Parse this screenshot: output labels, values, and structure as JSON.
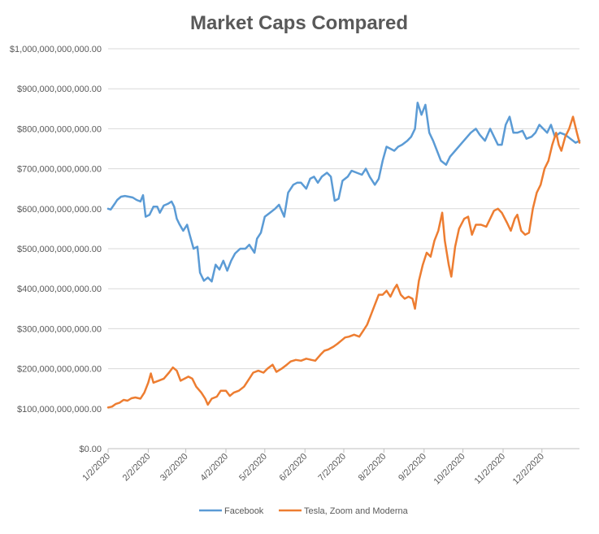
{
  "chart_data": {
    "type": "line",
    "title": "Market Caps Compared",
    "xlabel": "",
    "ylabel": "",
    "ylim": [
      0,
      1000000000000
    ],
    "yticks": [
      {
        "value": 0,
        "label": "$0.00"
      },
      {
        "value": 100000000000,
        "label": "$100,000,000,000.00"
      },
      {
        "value": 200000000000,
        "label": "$200,000,000,000.00"
      },
      {
        "value": 300000000000,
        "label": "$300,000,000,000.00"
      },
      {
        "value": 400000000000,
        "label": "$400,000,000,000.00"
      },
      {
        "value": 500000000000,
        "label": "$500,000,000,000.00"
      },
      {
        "value": 600000000000,
        "label": "$600,000,000,000.00"
      },
      {
        "value": 700000000000,
        "label": "$700,000,000,000.00"
      },
      {
        "value": 800000000000,
        "label": "$800,000,000,000.00"
      },
      {
        "value": 900000000000,
        "label": "$900,000,000,000.00"
      },
      {
        "value": 1000000000000,
        "label": "$1,000,000,000,000.00"
      }
    ],
    "xlim": [
      "2020-01-02",
      "2020-12-31"
    ],
    "xticks": [
      {
        "date": "2020-01-02",
        "label": "1/2/2020"
      },
      {
        "date": "2020-02-02",
        "label": "2/2/2020"
      },
      {
        "date": "2020-03-02",
        "label": "3/2/2020"
      },
      {
        "date": "2020-04-02",
        "label": "4/2/2020"
      },
      {
        "date": "2020-05-02",
        "label": "5/2/2020"
      },
      {
        "date": "2020-06-02",
        "label": "6/2/2020"
      },
      {
        "date": "2020-07-02",
        "label": "7/2/2020"
      },
      {
        "date": "2020-08-02",
        "label": "8/2/2020"
      },
      {
        "date": "2020-09-02",
        "label": "9/2/2020"
      },
      {
        "date": "2020-10-02",
        "label": "10/2/2020"
      },
      {
        "date": "2020-11-02",
        "label": "11/2/2020"
      },
      {
        "date": "2020-12-02",
        "label": "12/2/2020"
      }
    ],
    "grid": true,
    "legend_position": "bottom",
    "series": [
      {
        "name": "Facebook",
        "color": "#5b9bd5",
        "points": [
          [
            "2020-01-02",
            600
          ],
          [
            "2020-01-04",
            598
          ],
          [
            "2020-01-07",
            612
          ],
          [
            "2020-01-09",
            622
          ],
          [
            "2020-01-12",
            630
          ],
          [
            "2020-01-15",
            632
          ],
          [
            "2020-01-18",
            630
          ],
          [
            "2020-01-21",
            628
          ],
          [
            "2020-01-24",
            622
          ],
          [
            "2020-01-27",
            618
          ],
          [
            "2020-01-29",
            634
          ],
          [
            "2020-01-31",
            580
          ],
          [
            "2020-02-03",
            585
          ],
          [
            "2020-02-06",
            605
          ],
          [
            "2020-02-09",
            605
          ],
          [
            "2020-02-11",
            590
          ],
          [
            "2020-02-14",
            608
          ],
          [
            "2020-02-17",
            612
          ],
          [
            "2020-02-20",
            618
          ],
          [
            "2020-02-22",
            605
          ],
          [
            "2020-02-24",
            575
          ],
          [
            "2020-02-26",
            562
          ],
          [
            "2020-02-29",
            545
          ],
          [
            "2020-03-03",
            560
          ],
          [
            "2020-03-05",
            535
          ],
          [
            "2020-03-08",
            500
          ],
          [
            "2020-03-11",
            505
          ],
          [
            "2020-03-13",
            440
          ],
          [
            "2020-03-16",
            420
          ],
          [
            "2020-03-19",
            428
          ],
          [
            "2020-03-22",
            418
          ],
          [
            "2020-03-25",
            460
          ],
          [
            "2020-03-28",
            448
          ],
          [
            "2020-03-31",
            470
          ],
          [
            "2020-04-03",
            445
          ],
          [
            "2020-04-06",
            470
          ],
          [
            "2020-04-09",
            488
          ],
          [
            "2020-04-13",
            500
          ],
          [
            "2020-04-17",
            500
          ],
          [
            "2020-04-20",
            510
          ],
          [
            "2020-04-24",
            490
          ],
          [
            "2020-04-26",
            525
          ],
          [
            "2020-04-29",
            540
          ],
          [
            "2020-05-02",
            580
          ],
          [
            "2020-05-06",
            590
          ],
          [
            "2020-05-10",
            600
          ],
          [
            "2020-05-13",
            610
          ],
          [
            "2020-05-17",
            580
          ],
          [
            "2020-05-20",
            640
          ],
          [
            "2020-05-24",
            660
          ],
          [
            "2020-05-27",
            665
          ],
          [
            "2020-05-30",
            665
          ],
          [
            "2020-06-03",
            650
          ],
          [
            "2020-06-06",
            675
          ],
          [
            "2020-06-09",
            680
          ],
          [
            "2020-06-12",
            665
          ],
          [
            "2020-06-15",
            680
          ],
          [
            "2020-06-19",
            690
          ],
          [
            "2020-06-22",
            680
          ],
          [
            "2020-06-25",
            620
          ],
          [
            "2020-06-28",
            625
          ],
          [
            "2020-07-01",
            670
          ],
          [
            "2020-07-05",
            680
          ],
          [
            "2020-07-08",
            695
          ],
          [
            "2020-07-12",
            690
          ],
          [
            "2020-07-16",
            685
          ],
          [
            "2020-07-19",
            700
          ],
          [
            "2020-07-22",
            680
          ],
          [
            "2020-07-26",
            660
          ],
          [
            "2020-07-29",
            675
          ],
          [
            "2020-08-01",
            720
          ],
          [
            "2020-08-04",
            755
          ],
          [
            "2020-08-07",
            750
          ],
          [
            "2020-08-10",
            745
          ],
          [
            "2020-08-13",
            755
          ],
          [
            "2020-08-16",
            760
          ],
          [
            "2020-08-20",
            770
          ],
          [
            "2020-08-23",
            780
          ],
          [
            "2020-08-26",
            800
          ],
          [
            "2020-08-28",
            865
          ],
          [
            "2020-08-31",
            835
          ],
          [
            "2020-09-03",
            860
          ],
          [
            "2020-09-06",
            790
          ],
          [
            "2020-09-09",
            770
          ],
          [
            "2020-09-12",
            745
          ],
          [
            "2020-09-15",
            720
          ],
          [
            "2020-09-19",
            710
          ],
          [
            "2020-09-22",
            730
          ],
          [
            "2020-09-26",
            745
          ],
          [
            "2020-09-30",
            760
          ],
          [
            "2020-10-04",
            775
          ],
          [
            "2020-10-08",
            790
          ],
          [
            "2020-10-12",
            800
          ],
          [
            "2020-10-15",
            785
          ],
          [
            "2020-10-19",
            770
          ],
          [
            "2020-10-23",
            800
          ],
          [
            "2020-10-26",
            780
          ],
          [
            "2020-10-29",
            760
          ],
          [
            "2020-11-01",
            760
          ],
          [
            "2020-11-04",
            810
          ],
          [
            "2020-11-07",
            830
          ],
          [
            "2020-11-10",
            790
          ],
          [
            "2020-11-13",
            790
          ],
          [
            "2020-11-17",
            795
          ],
          [
            "2020-11-20",
            775
          ],
          [
            "2020-11-24",
            780
          ],
          [
            "2020-11-27",
            790
          ],
          [
            "2020-11-30",
            810
          ],
          [
            "2020-12-03",
            800
          ],
          [
            "2020-12-06",
            790
          ],
          [
            "2020-12-09",
            810
          ],
          [
            "2020-12-12",
            780
          ],
          [
            "2020-12-16",
            790
          ],
          [
            "2020-12-20",
            785
          ],
          [
            "2020-12-24",
            775
          ],
          [
            "2020-12-28",
            765
          ],
          [
            "2020-12-31",
            770
          ]
        ]
      },
      {
        "name": "Tesla, Zoom and Moderna",
        "color": "#ed7d31",
        "points": [
          [
            "2020-01-02",
            103
          ],
          [
            "2020-01-05",
            105
          ],
          [
            "2020-01-08",
            112
          ],
          [
            "2020-01-11",
            115
          ],
          [
            "2020-01-14",
            122
          ],
          [
            "2020-01-17",
            120
          ],
          [
            "2020-01-20",
            126
          ],
          [
            "2020-01-23",
            128
          ],
          [
            "2020-01-27",
            125
          ],
          [
            "2020-01-30",
            140
          ],
          [
            "2020-02-02",
            165
          ],
          [
            "2020-02-04",
            188
          ],
          [
            "2020-02-06",
            165
          ],
          [
            "2020-02-10",
            170
          ],
          [
            "2020-02-14",
            175
          ],
          [
            "2020-02-18",
            190
          ],
          [
            "2020-02-21",
            203
          ],
          [
            "2020-02-24",
            195
          ],
          [
            "2020-02-27",
            170
          ],
          [
            "2020-03-01",
            175
          ],
          [
            "2020-03-04",
            180
          ],
          [
            "2020-03-07",
            175
          ],
          [
            "2020-03-10",
            155
          ],
          [
            "2020-03-14",
            140
          ],
          [
            "2020-03-17",
            125
          ],
          [
            "2020-03-19",
            110
          ],
          [
            "2020-03-22",
            125
          ],
          [
            "2020-03-26",
            130
          ],
          [
            "2020-03-29",
            145
          ],
          [
            "2020-04-02",
            145
          ],
          [
            "2020-04-05",
            132
          ],
          [
            "2020-04-08",
            140
          ],
          [
            "2020-04-12",
            145
          ],
          [
            "2020-04-16",
            155
          ],
          [
            "2020-04-20",
            175
          ],
          [
            "2020-04-23",
            190
          ],
          [
            "2020-04-27",
            195
          ],
          [
            "2020-05-01",
            190
          ],
          [
            "2020-05-04",
            200
          ],
          [
            "2020-05-08",
            210
          ],
          [
            "2020-05-11",
            192
          ],
          [
            "2020-05-15",
            200
          ],
          [
            "2020-05-19",
            210
          ],
          [
            "2020-05-22",
            218
          ],
          [
            "2020-05-26",
            222
          ],
          [
            "2020-05-30",
            220
          ],
          [
            "2020-06-03",
            225
          ],
          [
            "2020-06-07",
            222
          ],
          [
            "2020-06-10",
            220
          ],
          [
            "2020-06-14",
            235
          ],
          [
            "2020-06-17",
            245
          ],
          [
            "2020-06-20",
            248
          ],
          [
            "2020-06-24",
            255
          ],
          [
            "2020-06-27",
            262
          ],
          [
            "2020-06-30",
            270
          ],
          [
            "2020-07-03",
            278
          ],
          [
            "2020-07-06",
            280
          ],
          [
            "2020-07-10",
            285
          ],
          [
            "2020-07-14",
            280
          ],
          [
            "2020-07-17",
            295
          ],
          [
            "2020-07-20",
            310
          ],
          [
            "2020-07-23",
            335
          ],
          [
            "2020-07-26",
            360
          ],
          [
            "2020-07-29",
            385
          ],
          [
            "2020-08-01",
            385
          ],
          [
            "2020-08-04",
            395
          ],
          [
            "2020-08-07",
            380
          ],
          [
            "2020-08-10",
            400
          ],
          [
            "2020-08-12",
            410
          ],
          [
            "2020-08-15",
            385
          ],
          [
            "2020-08-18",
            375
          ],
          [
            "2020-08-21",
            380
          ],
          [
            "2020-08-24",
            375
          ],
          [
            "2020-08-26",
            350
          ],
          [
            "2020-08-29",
            420
          ],
          [
            "2020-09-01",
            460
          ],
          [
            "2020-09-04",
            490
          ],
          [
            "2020-09-07",
            480
          ],
          [
            "2020-09-10",
            520
          ],
          [
            "2020-09-13",
            545
          ],
          [
            "2020-09-16",
            590
          ],
          [
            "2020-09-18",
            520
          ],
          [
            "2020-09-21",
            460
          ],
          [
            "2020-09-23",
            430
          ],
          [
            "2020-09-26",
            505
          ],
          [
            "2020-09-29",
            550
          ],
          [
            "2020-10-03",
            575
          ],
          [
            "2020-10-06",
            580
          ],
          [
            "2020-10-09",
            535
          ],
          [
            "2020-10-12",
            560
          ],
          [
            "2020-10-16",
            560
          ],
          [
            "2020-10-20",
            555
          ],
          [
            "2020-10-23",
            575
          ],
          [
            "2020-10-26",
            595
          ],
          [
            "2020-10-29",
            600
          ],
          [
            "2020-11-01",
            590
          ],
          [
            "2020-11-05",
            565
          ],
          [
            "2020-11-08",
            545
          ],
          [
            "2020-11-11",
            575
          ],
          [
            "2020-11-13",
            585
          ],
          [
            "2020-11-16",
            545
          ],
          [
            "2020-11-19",
            535
          ],
          [
            "2020-11-22",
            540
          ],
          [
            "2020-11-25",
            600
          ],
          [
            "2020-11-28",
            640
          ],
          [
            "2020-12-01",
            660
          ],
          [
            "2020-12-04",
            700
          ],
          [
            "2020-12-07",
            720
          ],
          [
            "2020-12-10",
            760
          ],
          [
            "2020-12-13",
            790
          ],
          [
            "2020-12-15",
            760
          ],
          [
            "2020-12-17",
            745
          ],
          [
            "2020-12-20",
            780
          ],
          [
            "2020-12-23",
            800
          ],
          [
            "2020-12-26",
            830
          ],
          [
            "2020-12-29",
            790
          ],
          [
            "2020-12-31",
            765
          ]
        ]
      }
    ]
  }
}
